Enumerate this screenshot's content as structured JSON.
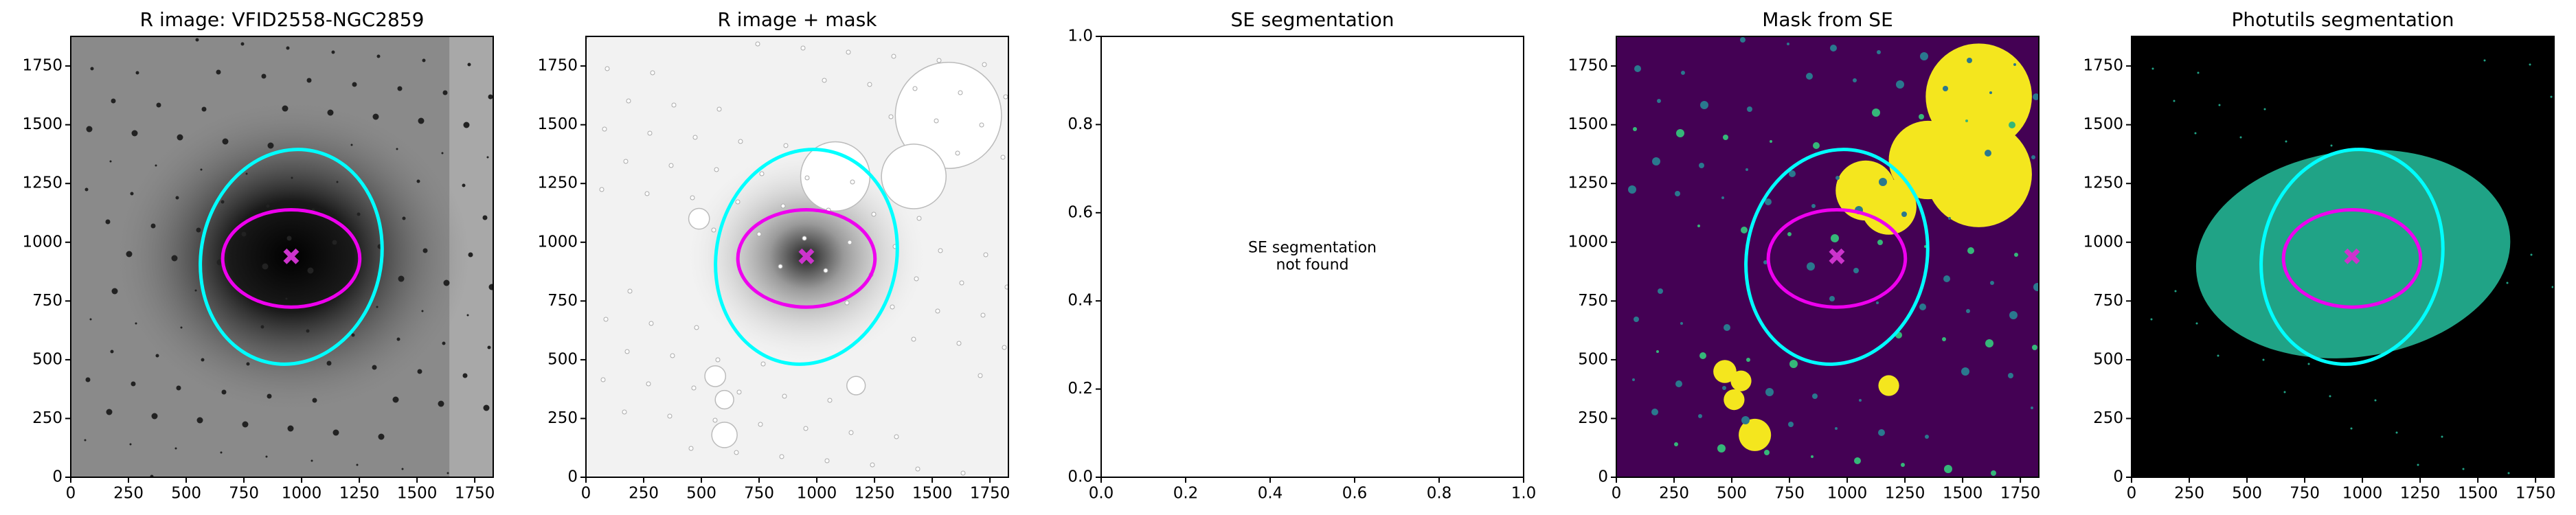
{
  "chart_data": [
    {
      "type": "image",
      "title": "R image: VFID2558-NGC2859",
      "xlim": [
        0,
        1830
      ],
      "ylim": [
        0,
        1876
      ],
      "xticks": [
        0,
        250,
        500,
        750,
        1000,
        1250,
        1500,
        1750
      ],
      "yticks": [
        0,
        250,
        500,
        750,
        1000,
        1250,
        1500,
        1750
      ],
      "ellipses": [
        {
          "cx": 955,
          "cy": 938,
          "rx": 390,
          "ry": 460,
          "angle": 12,
          "color": "#00ffff"
        },
        {
          "cx": 955,
          "cy": 931,
          "rx": 297,
          "ry": 207,
          "angle": 0,
          "color": "#ee00ee"
        }
      ],
      "markers": [
        {
          "x": 955,
          "y": 940,
          "color": "#cc33cc"
        }
      ]
    },
    {
      "type": "image",
      "title": "R image + mask",
      "xlim": [
        0,
        1830
      ],
      "ylim": [
        0,
        1876
      ],
      "xticks": [
        0,
        250,
        500,
        750,
        1000,
        1250,
        1500,
        1750
      ],
      "yticks": [
        0,
        250,
        500,
        750,
        1000,
        1250,
        1500,
        1750
      ],
      "ellipses": [
        {
          "cx": 955,
          "cy": 938,
          "rx": 390,
          "ry": 460,
          "angle": 12,
          "color": "#00ffff"
        },
        {
          "cx": 955,
          "cy": 931,
          "rx": 297,
          "ry": 207,
          "angle": 0,
          "color": "#ee00ee"
        }
      ],
      "markers": [
        {
          "x": 955,
          "y": 940,
          "color": "#cc33cc"
        }
      ]
    },
    {
      "type": "empty",
      "title": "SE segmentation",
      "xlim": [
        0,
        1
      ],
      "ylim": [
        0,
        1
      ],
      "xticks": [
        {
          "value": 0,
          "label": "0.0"
        },
        {
          "value": 0.2,
          "label": "0.2"
        },
        {
          "value": 0.4,
          "label": "0.4"
        },
        {
          "value": 0.6,
          "label": "0.6"
        },
        {
          "value": 0.8,
          "label": "0.8"
        },
        {
          "value": 1,
          "label": "1.0"
        }
      ],
      "yticks": [
        {
          "value": 0,
          "label": "0.0"
        },
        {
          "value": 0.2,
          "label": "0.2"
        },
        {
          "value": 0.4,
          "label": "0.4"
        },
        {
          "value": 0.6,
          "label": "0.6"
        },
        {
          "value": 0.8,
          "label": "0.8"
        },
        {
          "value": 1,
          "label": "1.0"
        }
      ],
      "annotation": "SE segmentation\nnot found"
    },
    {
      "type": "image",
      "title": "Mask from SE",
      "xlim": [
        0,
        1830
      ],
      "ylim": [
        0,
        1876
      ],
      "xticks": [
        0,
        250,
        500,
        750,
        1000,
        1250,
        1500,
        1750
      ],
      "yticks": [
        0,
        250,
        500,
        750,
        1000,
        1250,
        1500,
        1750
      ],
      "ellipses": [
        {
          "cx": 955,
          "cy": 938,
          "rx": 390,
          "ry": 460,
          "angle": 12,
          "color": "#00ffff"
        },
        {
          "cx": 955,
          "cy": 931,
          "rx": 297,
          "ry": 207,
          "angle": 0,
          "color": "#ee00ee"
        }
      ],
      "markers": [
        {
          "x": 955,
          "y": 940,
          "color": "#cc33cc"
        }
      ]
    },
    {
      "type": "image",
      "title": "Photutils segmentation",
      "xlim": [
        0,
        1830
      ],
      "ylim": [
        0,
        1876
      ],
      "xticks": [
        0,
        250,
        500,
        750,
        1000,
        1250,
        1500,
        1750
      ],
      "yticks": [
        0,
        250,
        500,
        750,
        1000,
        1250,
        1500,
        1750
      ],
      "ellipses": [
        {
          "cx": 955,
          "cy": 938,
          "rx": 390,
          "ry": 460,
          "angle": 12,
          "color": "#00ffff"
        },
        {
          "cx": 955,
          "cy": 931,
          "rx": 297,
          "ry": 207,
          "angle": 0,
          "color": "#ee00ee"
        }
      ],
      "markers": [
        {
          "x": 955,
          "y": 940,
          "color": "#cc33cc"
        }
      ]
    }
  ]
}
